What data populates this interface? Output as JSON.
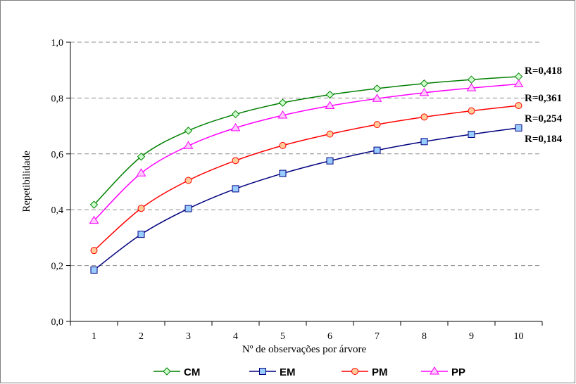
{
  "chart_data": {
    "type": "line",
    "title": "",
    "xlabel": "Nº  de observações por árvore",
    "ylabel": "Repetibilidade",
    "x": [
      1,
      2,
      3,
      4,
      5,
      6,
      7,
      8,
      9,
      10
    ],
    "xlim": [
      0.5,
      10.5
    ],
    "ylim": [
      0,
      1
    ],
    "yticks": [
      "0,0",
      "0,2",
      "0,4",
      "0,6",
      "0,8",
      "1,0"
    ],
    "ytick_values": [
      0,
      0.2,
      0.4,
      0.6,
      0.8,
      1.0
    ],
    "grid": "horizontal dashed",
    "legend_position": "bottom",
    "series": [
      {
        "name": "CM",
        "color": "#008000",
        "marker": "diamond",
        "marker_fill": "#ccffcc",
        "values": [
          0.418,
          0.59,
          0.683,
          0.742,
          0.783,
          0.812,
          0.834,
          0.852,
          0.866,
          0.877
        ]
      },
      {
        "name": "EM",
        "color": "#000080",
        "marker": "square",
        "marker_fill": "#99ccff",
        "values": [
          0.184,
          0.312,
          0.404,
          0.475,
          0.53,
          0.575,
          0.613,
          0.644,
          0.67,
          0.693
        ]
      },
      {
        "name": "PM",
        "color": "#ff0000",
        "marker": "circle",
        "marker_fill": "#ffcc99",
        "values": [
          0.254,
          0.405,
          0.505,
          0.576,
          0.63,
          0.671,
          0.705,
          0.732,
          0.754,
          0.773
        ]
      },
      {
        "name": "PP",
        "color": "#ff00ff",
        "marker": "triangle",
        "marker_fill": "#ffccff",
        "values": [
          0.361,
          0.531,
          0.629,
          0.693,
          0.738,
          0.772,
          0.798,
          0.819,
          0.836,
          0.85
        ]
      }
    ],
    "annotations": [
      "R=0,418",
      "R=0,361",
      "R=0,254",
      "R=0,184"
    ]
  }
}
